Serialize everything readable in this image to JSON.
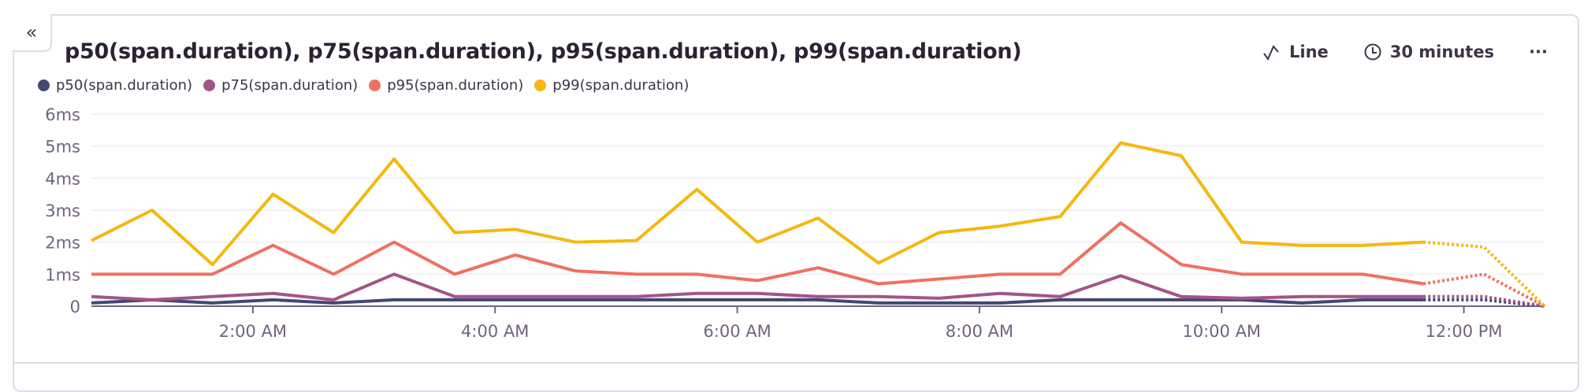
{
  "header": {
    "title": "p50(span.duration), p75(span.duration), p95(span.duration), p99(span.duration)",
    "chart_type_label": "Line",
    "interval_label": "30 minutes",
    "more_label": "···",
    "collapse_label": "«"
  },
  "chart_data": {
    "type": "line",
    "title": "p50(span.duration), p75(span.duration), p95(span.duration), p99(span.duration)",
    "xlabel": "",
    "ylabel": "",
    "ylim": [
      0,
      6
    ],
    "y_ticks": [
      "0",
      "1ms",
      "2ms",
      "3ms",
      "4ms",
      "5ms",
      "6ms"
    ],
    "x_ticks": [
      "2:00 AM",
      "4:00 AM",
      "6:00 AM",
      "8:00 AM",
      "10:00 AM",
      "12:00 PM"
    ],
    "x": [
      "00:40",
      "01:10",
      "01:40",
      "02:10",
      "02:40",
      "03:10",
      "03:40",
      "04:10",
      "04:40",
      "05:10",
      "05:40",
      "06:10",
      "06:40",
      "07:10",
      "07:40",
      "08:10",
      "08:40",
      "09:10",
      "09:40",
      "10:10",
      "10:40",
      "11:10",
      "11:40",
      "12:10",
      "12:40"
    ],
    "incomplete_from": "11:40",
    "legend_position": "top-left",
    "grid": true,
    "series": [
      {
        "name": "p50(span.duration)",
        "color": "#444674",
        "values": [
          0.1,
          0.2,
          0.1,
          0.2,
          0.1,
          0.2,
          0.2,
          0.2,
          0.2,
          0.2,
          0.2,
          0.2,
          0.2,
          0.1,
          0.1,
          0.1,
          0.2,
          0.2,
          0.2,
          0.2,
          0.1,
          0.2,
          0.2,
          0.2,
          0
        ]
      },
      {
        "name": "p75(span.duration)",
        "color": "#a35488",
        "values": [
          0.3,
          0.2,
          0.3,
          0.4,
          0.2,
          1.0,
          0.3,
          0.3,
          0.3,
          0.3,
          0.4,
          0.4,
          0.3,
          0.3,
          0.25,
          0.4,
          0.3,
          0.95,
          0.3,
          0.25,
          0.3,
          0.3,
          0.3,
          0.3,
          0
        ]
      },
      {
        "name": "p95(span.duration)",
        "color": "#ef7061",
        "values": [
          1.0,
          1.0,
          1.0,
          1.9,
          1.0,
          2.0,
          1.0,
          1.6,
          1.1,
          1.0,
          1.0,
          0.8,
          1.2,
          0.7,
          0.85,
          1.0,
          1.0,
          2.6,
          1.3,
          1.0,
          1.0,
          1.0,
          0.7,
          1.0,
          0
        ]
      },
      {
        "name": "p99(span.duration)",
        "color": "#f4b80f",
        "values": [
          2.05,
          3.0,
          1.3,
          3.5,
          2.3,
          4.6,
          2.3,
          2.4,
          2.0,
          2.05,
          3.65,
          2.0,
          2.75,
          1.35,
          2.3,
          2.5,
          2.8,
          5.1,
          4.7,
          2.0,
          1.9,
          1.9,
          2.0,
          1.85,
          0
        ]
      }
    ]
  }
}
